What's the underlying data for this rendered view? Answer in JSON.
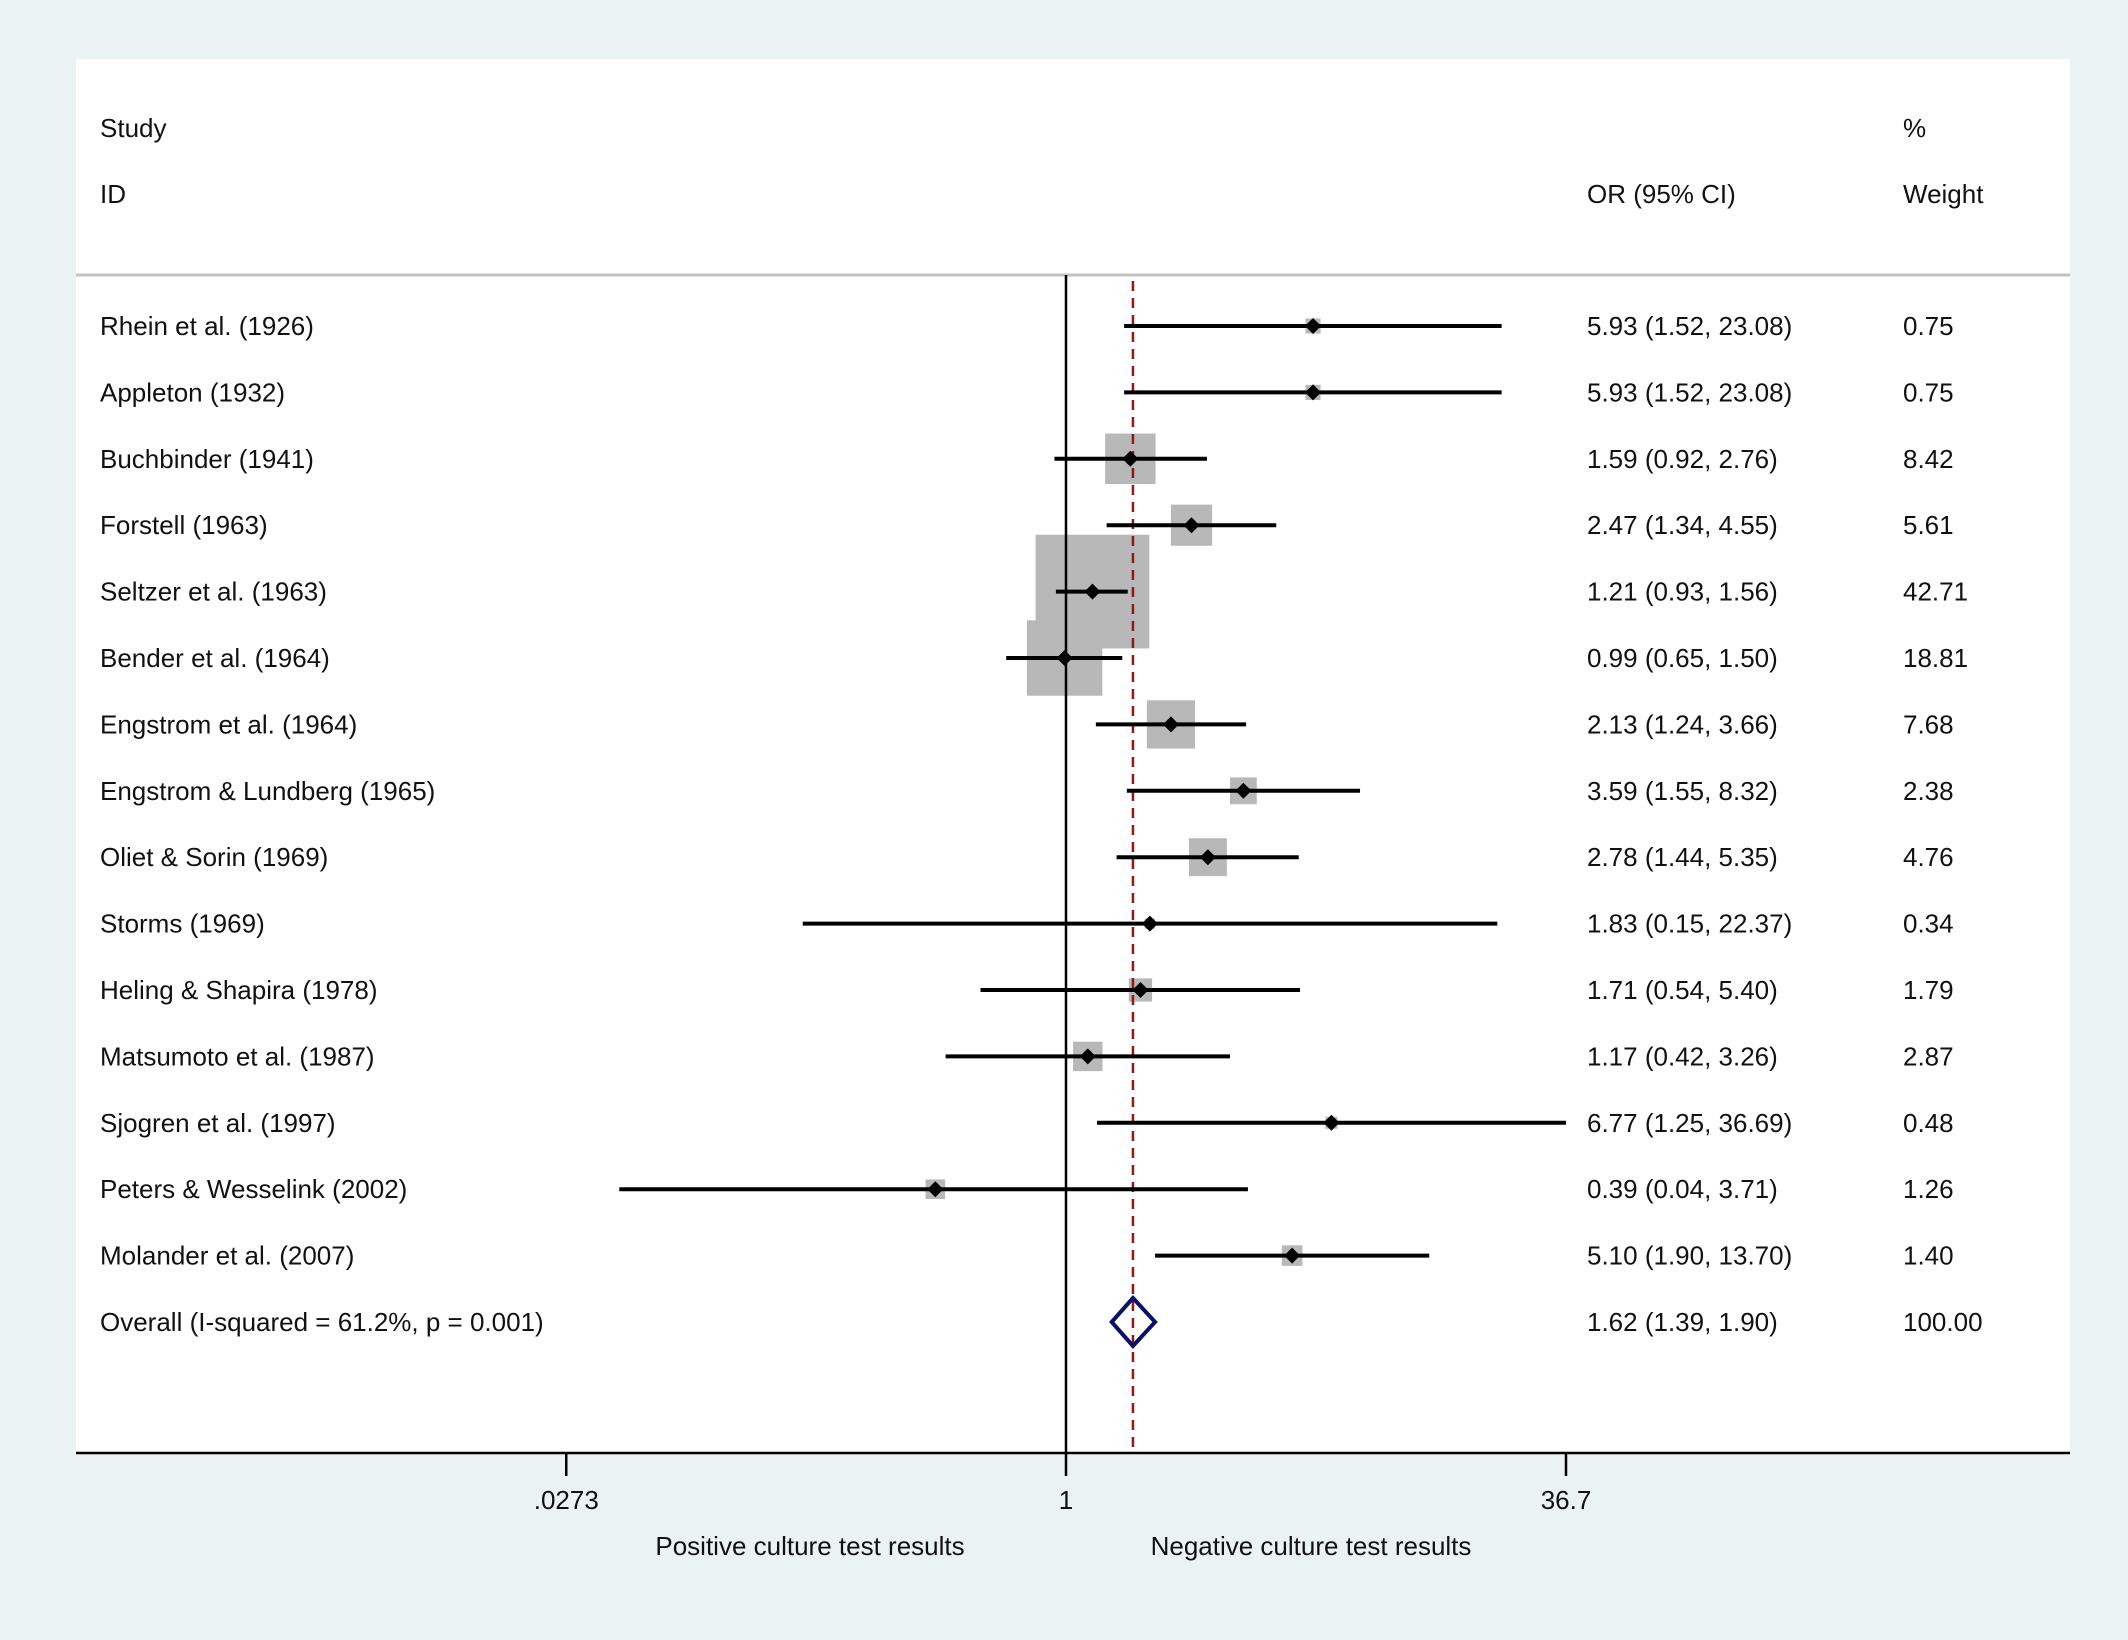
{
  "chart_data": {
    "type": "forest",
    "headers": {
      "study_line1": "Study",
      "study_line2": "ID",
      "estimate": "OR (95% CI)",
      "weight_line1": "%",
      "weight_line2": "Weight"
    },
    "studies": [
      {
        "label": "Rhein et al. (1926)",
        "or": 5.93,
        "lo": 1.52,
        "hi": 23.08,
        "text": "5.93 (1.52, 23.08)",
        "weight": 0.75,
        "weight_text": "0.75"
      },
      {
        "label": "Appleton (1932)",
        "or": 5.93,
        "lo": 1.52,
        "hi": 23.08,
        "text": "5.93 (1.52, 23.08)",
        "weight": 0.75,
        "weight_text": "0.75"
      },
      {
        "label": "Buchbinder (1941)",
        "or": 1.59,
        "lo": 0.92,
        "hi": 2.76,
        "text": "1.59 (0.92, 2.76)",
        "weight": 8.42,
        "weight_text": "8.42"
      },
      {
        "label": "Forstell (1963)",
        "or": 2.47,
        "lo": 1.34,
        "hi": 4.55,
        "text": "2.47 (1.34, 4.55)",
        "weight": 5.61,
        "weight_text": "5.61"
      },
      {
        "label": "Seltzer et al. (1963)",
        "or": 1.21,
        "lo": 0.93,
        "hi": 1.56,
        "text": "1.21 (0.93, 1.56)",
        "weight": 42.71,
        "weight_text": "42.71"
      },
      {
        "label": "Bender et al. (1964)",
        "or": 0.99,
        "lo": 0.65,
        "hi": 1.5,
        "text": "0.99 (0.65, 1.50)",
        "weight": 18.81,
        "weight_text": "18.81"
      },
      {
        "label": "Engstrom et al. (1964)",
        "or": 2.13,
        "lo": 1.24,
        "hi": 3.66,
        "text": "2.13 (1.24, 3.66)",
        "weight": 7.68,
        "weight_text": "7.68"
      },
      {
        "label": "Engstrom & Lundberg (1965)",
        "or": 3.59,
        "lo": 1.55,
        "hi": 8.32,
        "text": "3.59 (1.55, 8.32)",
        "weight": 2.38,
        "weight_text": "2.38"
      },
      {
        "label": "Oliet & Sorin (1969)",
        "or": 2.78,
        "lo": 1.44,
        "hi": 5.35,
        "text": "2.78 (1.44, 5.35)",
        "weight": 4.76,
        "weight_text": "4.76"
      },
      {
        "label": "Storms (1969)",
        "or": 1.83,
        "lo": 0.15,
        "hi": 22.37,
        "text": "1.83 (0.15, 22.37)",
        "weight": 0.34,
        "weight_text": "0.34"
      },
      {
        "label": "Heling & Shapira (1978)",
        "or": 1.71,
        "lo": 0.54,
        "hi": 5.4,
        "text": "1.71 (0.54, 5.40)",
        "weight": 1.79,
        "weight_text": "1.79"
      },
      {
        "label": "Matsumoto et al. (1987)",
        "or": 1.17,
        "lo": 0.42,
        "hi": 3.26,
        "text": "1.17 (0.42, 3.26)",
        "weight": 2.87,
        "weight_text": "2.87"
      },
      {
        "label": "Sjogren et al. (1997)",
        "or": 6.77,
        "lo": 1.25,
        "hi": 36.69,
        "text": "6.77 (1.25, 36.69)",
        "weight": 0.48,
        "weight_text": "0.48"
      },
      {
        "label": "Peters & Wesselink (2002)",
        "or": 0.39,
        "lo": 0.04,
        "hi": 3.71,
        "text": "0.39 (0.04, 3.71)",
        "weight": 1.26,
        "weight_text": "1.26"
      },
      {
        "label": "Molander et al. (2007)",
        "or": 5.1,
        "lo": 1.9,
        "hi": 13.7,
        "text": "5.10 (1.90, 13.70)",
        "weight": 1.4,
        "weight_text": "1.40"
      }
    ],
    "overall": {
      "label": "Overall  (I-squared = 61.2%, p = 0.001)",
      "or": 1.62,
      "lo": 1.39,
      "hi": 1.9,
      "text": "1.62 (1.39, 1.90)",
      "weight_text": "100.00"
    },
    "x_axis": {
      "scale": "log",
      "ticks": [
        {
          "value": 0.0273,
          "label": ".0273"
        },
        {
          "value": 1,
          "label": "1"
        },
        {
          "value": 36.7,
          "label": "36.7"
        }
      ],
      "null_value": 1
    },
    "direction_labels": {
      "left": "Positive culture test results",
      "right": "Negative culture test results"
    },
    "colors": {
      "background": "#eaf2f3",
      "panel": "#ffffff",
      "weight_box": "#b8b8b8",
      "ci_line": "#000000",
      "overall_line": "#8b1a1a",
      "diamond": "#0b1264"
    }
  }
}
